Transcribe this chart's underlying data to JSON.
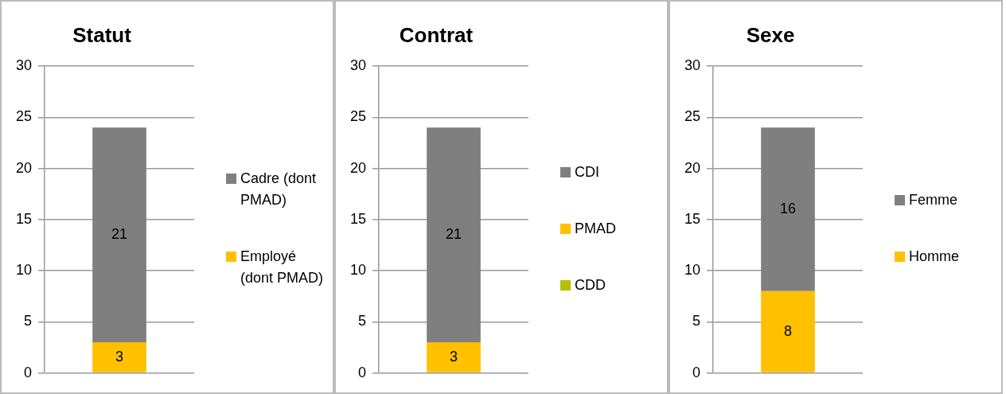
{
  "chart_data": [
    {
      "type": "bar",
      "title": "Statut",
      "categories": [
        null
      ],
      "stacked": true,
      "series": [
        {
          "name": "Employé (dont PMAD)",
          "color": "#ffc000",
          "values": [
            3
          ],
          "value_labels": [
            "3"
          ]
        },
        {
          "name": "Cadre (dont PMAD)",
          "color": "#7f7f7f",
          "values": [
            21
          ],
          "value_labels": [
            "21"
          ]
        }
      ],
      "ylim": [
        0,
        30
      ],
      "yticks": [
        0,
        5,
        10,
        15,
        20,
        25,
        30
      ],
      "grid": "y",
      "legend": "right"
    },
    {
      "type": "bar",
      "title": "Contrat",
      "categories": [
        null
      ],
      "stacked": true,
      "series": [
        {
          "name": "CDD",
          "color": "#b4c000",
          "values": [
            0
          ],
          "value_labels": [
            null
          ]
        },
        {
          "name": "PMAD",
          "color": "#ffc000",
          "values": [
            3
          ],
          "value_labels": [
            "3"
          ]
        },
        {
          "name": "CDI",
          "color": "#7f7f7f",
          "values": [
            21
          ],
          "value_labels": [
            "21"
          ]
        }
      ],
      "ylim": [
        0,
        30
      ],
      "yticks": [
        0,
        5,
        10,
        15,
        20,
        25,
        30
      ],
      "grid": "y",
      "legend": "right"
    },
    {
      "type": "bar",
      "title": "Sexe",
      "categories": [
        null
      ],
      "stacked": true,
      "series": [
        {
          "name": "Homme",
          "color": "#ffc000",
          "values": [
            8
          ],
          "value_labels": [
            "8"
          ]
        },
        {
          "name": "Femme",
          "color": "#7f7f7f",
          "values": [
            16
          ],
          "value_labels": [
            "16"
          ]
        }
      ],
      "ylim": [
        0,
        30
      ],
      "yticks": [
        0,
        5,
        10,
        15,
        20,
        25,
        30
      ],
      "grid": "y",
      "legend": "right"
    }
  ]
}
